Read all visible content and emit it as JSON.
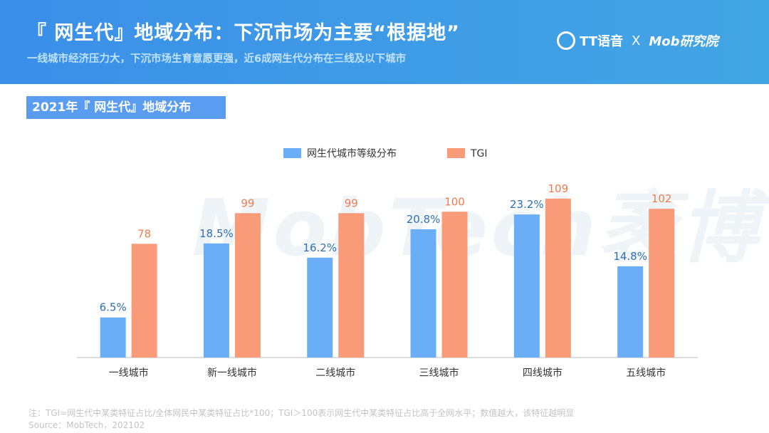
{
  "header": {
    "title": "『 网生代』地域分布：下沉市场为主要“根据地”",
    "subtitle": "一线城市经济压力大，下沉市场生育意愿更强，近6成网生代分布在三线及以下城市",
    "logo_tt": "TT语音",
    "logo_x": "X",
    "logo_mob": "Mob研究院"
  },
  "section_title": "2021年『 网生代』地域分布",
  "watermark": "MobTech袤博",
  "chart_data": {
    "type": "bar",
    "categories": [
      "一线城市",
      "新一线城市",
      "二线城市",
      "三线城市",
      "四线城市",
      "五线城市"
    ],
    "series": [
      {
        "name": "网生代城市等级分布",
        "values": [
          6.5,
          18.5,
          16.2,
          20.8,
          23.2,
          14.8
        ],
        "labels": [
          "6.5%",
          "18.5%",
          "16.2%",
          "20.8%",
          "23.2%",
          "14.8%"
        ],
        "color": "#6aaef7",
        "ylim": [
          0,
          35
        ]
      },
      {
        "name": "TGI",
        "values": [
          78,
          99,
          99,
          100,
          109,
          102
        ],
        "labels": [
          "78",
          "99",
          "99",
          "100",
          "109",
          "102"
        ],
        "color": "#f99b78",
        "ylim": [
          0,
          148
        ]
      }
    ],
    "legend": "top-center",
    "grid": false,
    "label_colors": {
      "网生代城市等级分布": "#2f6fb6",
      "TGI": "#ee7b4f"
    }
  },
  "notes": {
    "note": "注：TGI=网生代中某类特征占比/全体网民中某类特征占比*100；TGI＞100表示网生代中某类特征占比高于全网水平；数值越大，该特征越明显",
    "source": "Source：MobTech，202102"
  }
}
